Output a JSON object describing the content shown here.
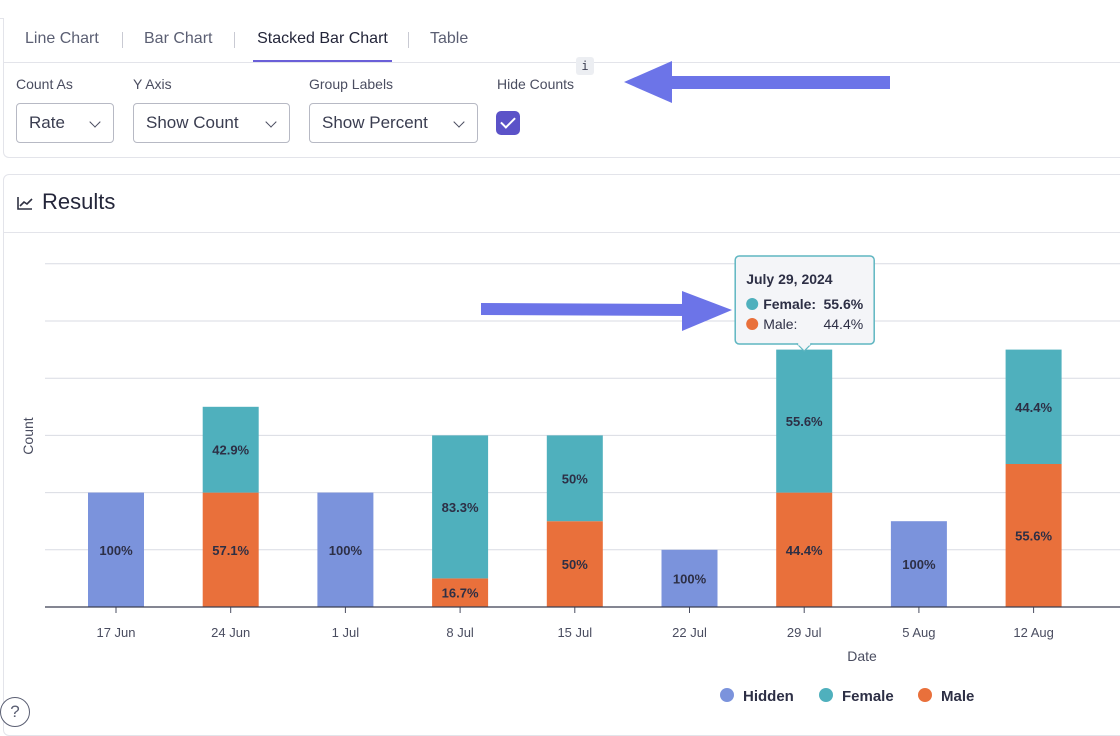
{
  "tabs": [
    {
      "label": "Line Chart",
      "active": false
    },
    {
      "label": "Bar Chart",
      "active": false
    },
    {
      "label": "Stacked Bar Chart",
      "active": true
    },
    {
      "label": "Table",
      "active": false
    }
  ],
  "controls": {
    "count_as": {
      "label": "Count As",
      "value": "Rate"
    },
    "y_axis": {
      "label": "Y Axis",
      "value": "Show Count"
    },
    "group_labels": {
      "label": "Group Labels",
      "value": "Show Percent"
    },
    "hide_counts": {
      "label": "Hide Counts",
      "info": "i",
      "checked": true
    }
  },
  "results": {
    "title": "Results",
    "icon": "line-chart-icon"
  },
  "help": {
    "label": "?"
  },
  "colors": {
    "Hidden": "#7b93dc",
    "Female": "#4fb0bd",
    "Male": "#e9703b",
    "accent": "#5b52c8"
  },
  "chart_data": {
    "type": "bar",
    "stacked": true,
    "xlabel": "Date",
    "ylabel": "Count",
    "ylim": [
      0,
      6
    ],
    "grid": true,
    "legend_position": "bottom",
    "categories": [
      "17 Jun",
      "24 Jun",
      "1 Jul",
      "8 Jul",
      "15 Jul",
      "22 Jul",
      "29 Jul",
      "5 Aug",
      "12 Aug"
    ],
    "series": [
      {
        "name": "Hidden",
        "values": [
          2,
          0,
          2,
          0,
          0,
          1,
          0,
          1.5,
          0
        ],
        "labels": [
          "100%",
          "",
          "100%",
          "",
          "",
          "100%",
          "",
          "100%",
          ""
        ]
      },
      {
        "name": "Male",
        "values": [
          0,
          2,
          0,
          0.5,
          1.5,
          0,
          2,
          0,
          2.5
        ],
        "labels": [
          "",
          "57.1%",
          "",
          "16.7%",
          "50%",
          "",
          "44.4%",
          "",
          "55.6%"
        ]
      },
      {
        "name": "Female",
        "values": [
          0,
          1.5,
          0,
          2.5,
          1.5,
          0,
          2.5,
          0,
          2
        ],
        "labels": [
          "",
          "42.9%",
          "",
          "83.3%",
          "50%",
          "",
          "55.6%",
          "",
          "44.4%"
        ]
      }
    ],
    "tooltip": {
      "category": "29 Jul",
      "title": "July 29, 2024",
      "rows": [
        {
          "series": "Female",
          "label": "Female:",
          "value": "55.6%"
        },
        {
          "series": "Male",
          "label": "Male:",
          "value": "44.4%"
        }
      ]
    }
  }
}
